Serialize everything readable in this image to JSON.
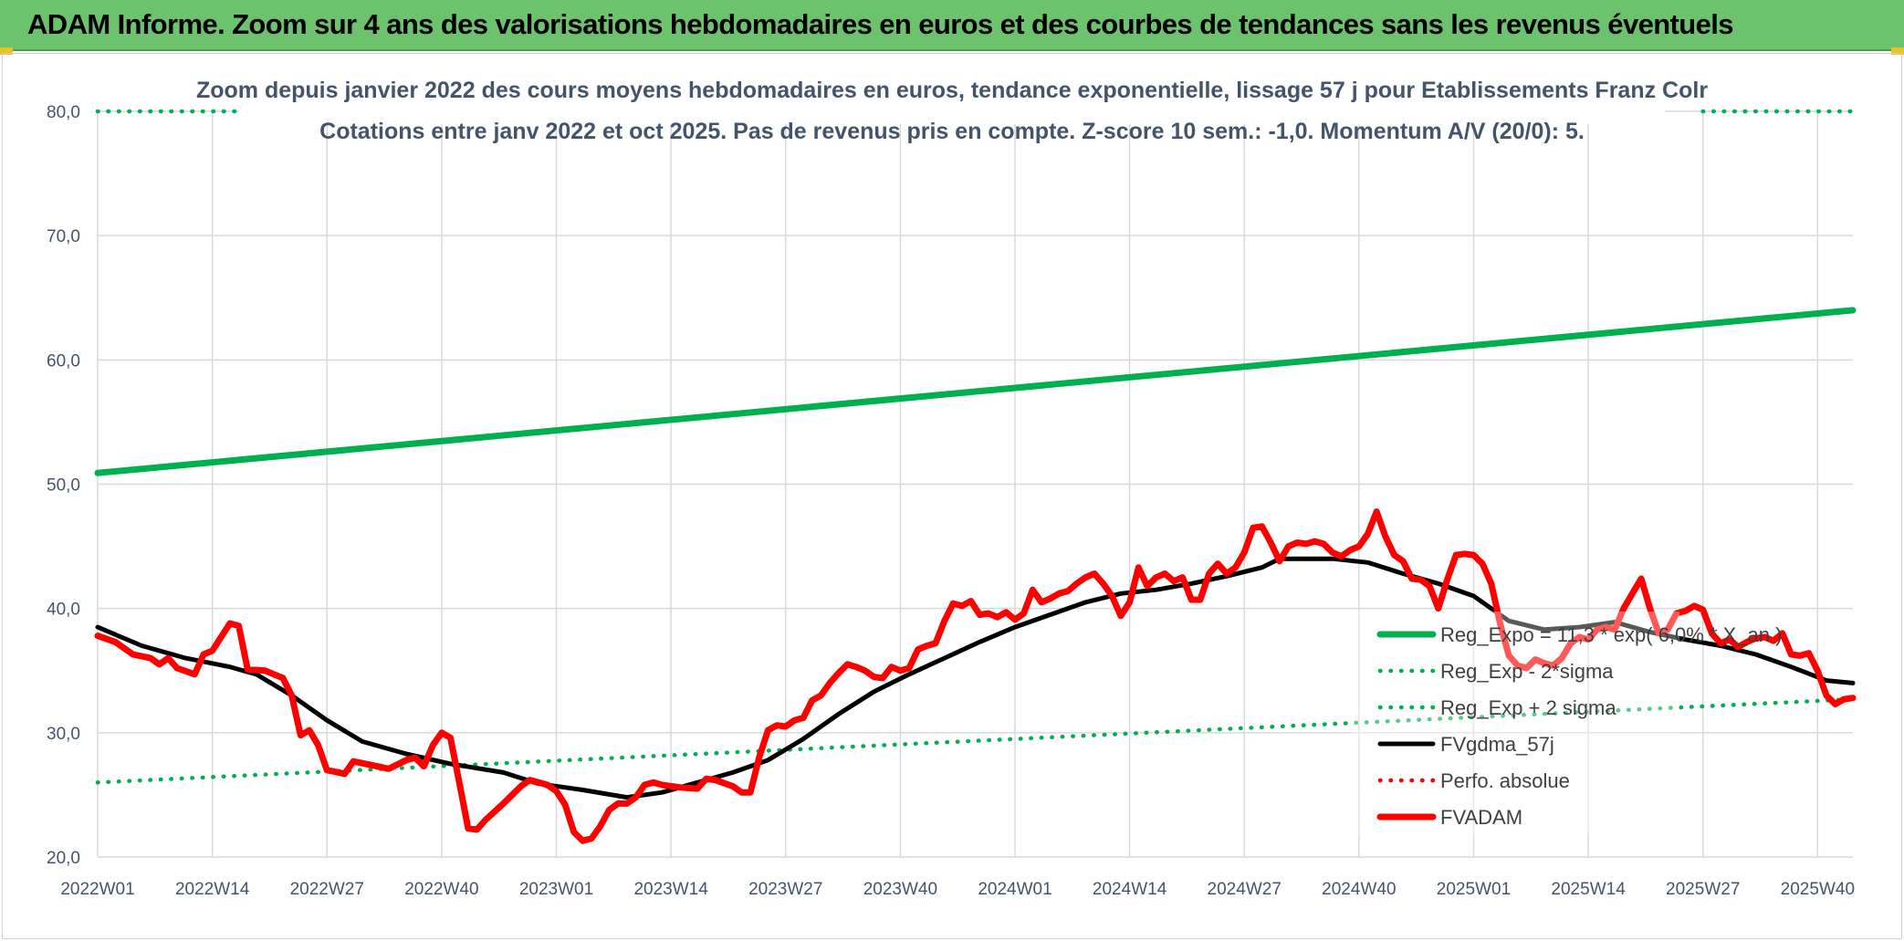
{
  "banner": {
    "title": "ADAM Informe. Zoom sur 4 ans des valorisations hebdomadaires en euros et des courbes de tendances sans les revenus éventuels"
  },
  "colors": {
    "banner": "#6dc26d",
    "regExp": "#00b050",
    "sigma": "#00b050",
    "fvgdma": "#000000",
    "perfo": "#ff0000",
    "fvadam": "#ff0000",
    "grid": "#d9d9d9"
  },
  "chart_data": {
    "type": "line",
    "title": "Zoom depuis janvier 2022 des cours moyens hebdomadaires en euros, tendance exponentielle, lissage 57 j pour Etablissements Franz Colr",
    "subtitle": "Cotations entre janv 2022 et oct 2025. Pas de revenus pris en compte. Z-score 10 sem.: -1,0. Momentum A/V (20/0): 5.",
    "xlabel": "",
    "ylabel": "",
    "ylim": [
      20,
      80
    ],
    "yticks": [
      "20,0",
      "30,0",
      "40,0",
      "50,0",
      "60,0",
      "70,0",
      "80,0"
    ],
    "xticks": [
      "2022W01",
      "2022W14",
      "2022W27",
      "2022W40",
      "2023W01",
      "2023W14",
      "2023W27",
      "2023W40",
      "2024W01",
      "2024W14",
      "2024W27",
      "2024W40",
      "2025W01",
      "2025W14",
      "2025W27",
      "2025W40"
    ],
    "n_weeks": 200,
    "grid": true,
    "legend_position": "right",
    "series": [
      {
        "name": "Reg_Expo = 11,3 * exp( 6,0% * X_an )",
        "style": "solid",
        "color": "#00b050",
        "points": [
          [
            0,
            50.9
          ],
          [
            199,
            64.0
          ]
        ]
      },
      {
        "name": "Reg_Exp - 2*sigma",
        "style": "dotted",
        "color": "#00b050",
        "points": [
          [
            0,
            26.0
          ],
          [
            199,
            32.7
          ]
        ]
      },
      {
        "name": "Reg_Exp + 2 sigma",
        "style": "dotted",
        "color": "#00b050",
        "points": [
          [
            0,
            80.0
          ],
          [
            16,
            80.0
          ]
        ],
        "points2": [
          [
            182,
            80.0
          ],
          [
            199,
            80.0
          ]
        ]
      },
      {
        "name": "FVgdma_57j",
        "style": "solid",
        "color": "#000000",
        "points": [
          [
            0,
            38.5
          ],
          [
            5,
            37.0
          ],
          [
            10,
            36.0
          ],
          [
            15,
            35.3
          ],
          [
            18,
            34.7
          ],
          [
            22,
            33.0
          ],
          [
            26,
            31.0
          ],
          [
            30,
            29.3
          ],
          [
            35,
            28.3
          ],
          [
            40,
            27.5
          ],
          [
            46,
            26.8
          ],
          [
            50,
            25.9
          ],
          [
            55,
            25.4
          ],
          [
            60,
            24.8
          ],
          [
            64,
            25.2
          ],
          [
            68,
            26.0
          ],
          [
            72,
            26.8
          ],
          [
            76,
            27.8
          ],
          [
            80,
            29.5
          ],
          [
            84,
            31.5
          ],
          [
            88,
            33.3
          ],
          [
            92,
            34.7
          ],
          [
            96,
            36.0
          ],
          [
            100,
            37.3
          ],
          [
            104,
            38.5
          ],
          [
            108,
            39.5
          ],
          [
            112,
            40.5
          ],
          [
            116,
            41.2
          ],
          [
            120,
            41.5
          ],
          [
            124,
            42.0
          ],
          [
            128,
            42.6
          ],
          [
            132,
            43.3
          ],
          [
            134,
            44.0
          ],
          [
            140,
            44.0
          ],
          [
            144,
            43.7
          ],
          [
            148,
            42.8
          ],
          [
            152,
            42.0
          ],
          [
            156,
            41.0
          ],
          [
            160,
            39.0
          ],
          [
            164,
            38.3
          ],
          [
            168,
            38.5
          ],
          [
            172,
            38.9
          ],
          [
            176,
            38.1
          ],
          [
            180,
            37.5
          ],
          [
            184,
            37.0
          ],
          [
            188,
            36.3
          ],
          [
            192,
            35.3
          ],
          [
            196,
            34.2
          ],
          [
            199,
            34.0
          ]
        ]
      },
      {
        "name": "Perfo. absolue",
        "style": "dotted",
        "color": "#ff0000",
        "points": []
      },
      {
        "name": "FVADAM",
        "style": "solid",
        "color": "#ff0000",
        "points": [
          [
            0,
            37.8
          ],
          [
            2,
            37.3
          ],
          [
            4,
            36.3
          ],
          [
            6,
            36.0
          ],
          [
            7,
            35.5
          ],
          [
            8,
            36.0
          ],
          [
            9,
            35.2
          ],
          [
            11,
            34.7
          ],
          [
            12,
            36.3
          ],
          [
            13,
            36.6
          ],
          [
            15,
            38.8
          ],
          [
            16,
            38.6
          ],
          [
            17,
            35.1
          ],
          [
            19,
            35.0
          ],
          [
            21,
            34.4
          ],
          [
            22,
            33.0
          ],
          [
            23,
            29.8
          ],
          [
            24,
            30.2
          ],
          [
            25,
            29.0
          ],
          [
            26,
            27.0
          ],
          [
            28,
            26.7
          ],
          [
            29,
            27.7
          ],
          [
            31,
            27.4
          ],
          [
            33,
            27.1
          ],
          [
            35,
            27.8
          ],
          [
            36,
            28.0
          ],
          [
            37,
            27.3
          ],
          [
            38,
            29.0
          ],
          [
            39,
            30.0
          ],
          [
            40,
            29.6
          ],
          [
            41,
            26.0
          ],
          [
            42,
            22.3
          ],
          [
            43,
            22.2
          ],
          [
            44,
            23.0
          ],
          [
            46,
            24.3
          ],
          [
            48,
            25.7
          ],
          [
            49,
            26.2
          ],
          [
            51,
            25.8
          ],
          [
            52,
            25.3
          ],
          [
            53,
            24.2
          ],
          [
            54,
            22.0
          ],
          [
            55,
            21.3
          ],
          [
            56,
            21.5
          ],
          [
            57,
            22.5
          ],
          [
            58,
            23.8
          ],
          [
            59,
            24.3
          ],
          [
            60,
            24.3
          ],
          [
            61,
            24.8
          ],
          [
            62,
            25.8
          ],
          [
            63,
            26.0
          ],
          [
            64,
            25.8
          ],
          [
            66,
            25.6
          ],
          [
            68,
            25.5
          ],
          [
            69,
            26.3
          ],
          [
            70,
            26.2
          ],
          [
            72,
            25.7
          ],
          [
            73,
            25.2
          ],
          [
            74,
            25.2
          ],
          [
            75,
            28.0
          ],
          [
            76,
            30.2
          ],
          [
            77,
            30.6
          ],
          [
            78,
            30.5
          ],
          [
            79,
            31.0
          ],
          [
            80,
            31.2
          ],
          [
            81,
            32.6
          ],
          [
            82,
            33.0
          ],
          [
            83,
            34.0
          ],
          [
            84,
            34.8
          ],
          [
            85,
            35.5
          ],
          [
            86,
            35.3
          ],
          [
            87,
            35.0
          ],
          [
            88,
            34.5
          ],
          [
            89,
            34.4
          ],
          [
            90,
            35.3
          ],
          [
            91,
            35.0
          ],
          [
            92,
            35.2
          ],
          [
            93,
            36.7
          ],
          [
            94,
            37.0
          ],
          [
            95,
            37.2
          ],
          [
            96,
            39.0
          ],
          [
            97,
            40.4
          ],
          [
            98,
            40.2
          ],
          [
            99,
            40.6
          ],
          [
            100,
            39.5
          ],
          [
            101,
            39.6
          ],
          [
            102,
            39.3
          ],
          [
            103,
            39.7
          ],
          [
            104,
            39.1
          ],
          [
            105,
            39.6
          ],
          [
            106,
            41.5
          ],
          [
            107,
            40.5
          ],
          [
            108,
            40.8
          ],
          [
            109,
            41.2
          ],
          [
            110,
            41.4
          ],
          [
            111,
            42.0
          ],
          [
            112,
            42.5
          ],
          [
            113,
            42.8
          ],
          [
            114,
            42.0
          ],
          [
            115,
            41.0
          ],
          [
            116,
            39.4
          ],
          [
            117,
            40.5
          ],
          [
            118,
            43.3
          ],
          [
            119,
            41.8
          ],
          [
            120,
            42.5
          ],
          [
            121,
            42.8
          ],
          [
            122,
            42.2
          ],
          [
            123,
            42.5
          ],
          [
            124,
            40.7
          ],
          [
            125,
            40.7
          ],
          [
            126,
            42.8
          ],
          [
            127,
            43.6
          ],
          [
            128,
            42.8
          ],
          [
            129,
            43.3
          ],
          [
            130,
            44.5
          ],
          [
            131,
            46.5
          ],
          [
            132,
            46.6
          ],
          [
            133,
            45.3
          ],
          [
            134,
            43.8
          ],
          [
            135,
            45.0
          ],
          [
            136,
            45.3
          ],
          [
            137,
            45.2
          ],
          [
            138,
            45.4
          ],
          [
            139,
            45.2
          ],
          [
            140,
            44.5
          ],
          [
            141,
            44.2
          ],
          [
            142,
            44.7
          ],
          [
            143,
            45.0
          ],
          [
            144,
            46.0
          ],
          [
            145,
            47.8
          ],
          [
            146,
            45.8
          ],
          [
            147,
            44.3
          ],
          [
            148,
            43.8
          ],
          [
            149,
            42.4
          ],
          [
            150,
            42.3
          ],
          [
            151,
            41.8
          ],
          [
            152,
            40.0
          ],
          [
            153,
            42.3
          ],
          [
            154,
            44.3
          ],
          [
            155,
            44.4
          ],
          [
            156,
            44.3
          ],
          [
            157,
            43.6
          ],
          [
            158,
            42.0
          ],
          [
            159,
            38.8
          ],
          [
            160,
            36.2
          ],
          [
            161,
            35.4
          ],
          [
            162,
            35.2
          ],
          [
            163,
            35.9
          ],
          [
            164,
            35.6
          ],
          [
            165,
            35.4
          ],
          [
            166,
            36.0
          ],
          [
            167,
            37.2
          ],
          [
            168,
            37.7
          ],
          [
            169,
            37.5
          ],
          [
            170,
            38.3
          ],
          [
            171,
            38.5
          ],
          [
            172,
            38.3
          ],
          [
            173,
            40.0
          ],
          [
            174,
            41.2
          ],
          [
            175,
            42.4
          ],
          [
            176,
            40.0
          ],
          [
            177,
            38.0
          ],
          [
            178,
            38.3
          ],
          [
            179,
            39.6
          ],
          [
            180,
            39.8
          ],
          [
            181,
            40.2
          ],
          [
            182,
            39.9
          ],
          [
            183,
            38.0
          ],
          [
            184,
            37.2
          ],
          [
            185,
            37.5
          ],
          [
            186,
            36.9
          ],
          [
            187,
            37.3
          ],
          [
            188,
            37.6
          ],
          [
            189,
            37.7
          ],
          [
            190,
            37.4
          ],
          [
            191,
            38.0
          ],
          [
            192,
            36.3
          ],
          [
            193,
            36.2
          ],
          [
            194,
            36.4
          ],
          [
            195,
            35.0
          ],
          [
            196,
            33.0
          ],
          [
            197,
            32.3
          ],
          [
            198,
            32.7
          ],
          [
            199,
            32.8
          ]
        ]
      }
    ]
  }
}
